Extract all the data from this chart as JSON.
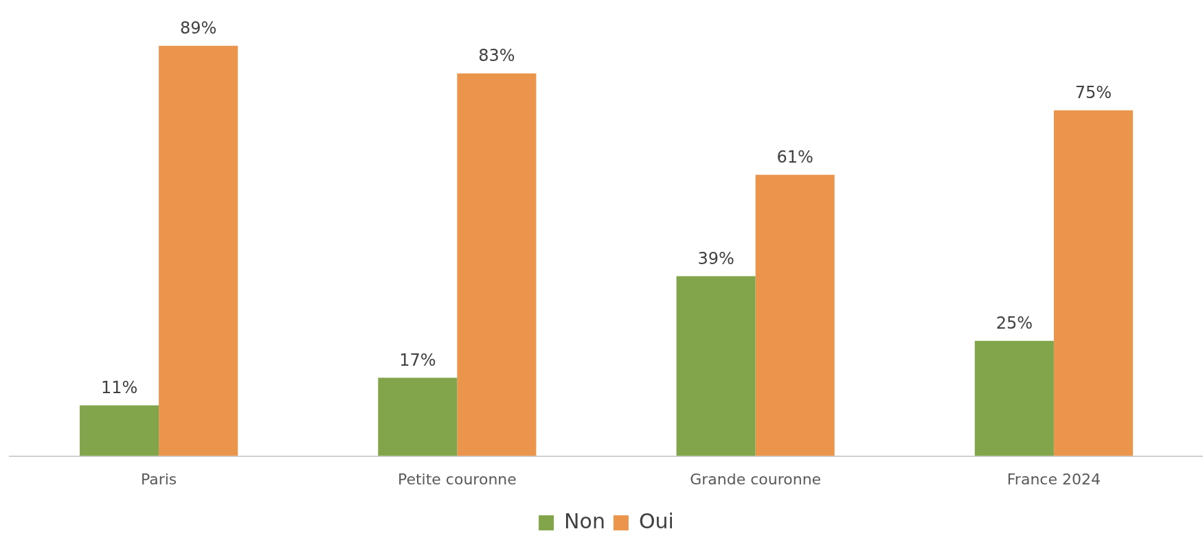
{
  "chart_data": {
    "type": "bar",
    "categories": [
      "Paris",
      "Petite couronne",
      "Grande couronne",
      "France 2024"
    ],
    "series": [
      {
        "name": "Non",
        "color": "#82a44a",
        "values": [
          11,
          17,
          39,
          25
        ],
        "value_labels": [
          "11%",
          "17%",
          "39%",
          "25%"
        ]
      },
      {
        "name": "Oui",
        "color": "#eb944b",
        "values": [
          89,
          83,
          61,
          75
        ],
        "value_labels": [
          "89%",
          "83%",
          "61%",
          "75%"
        ]
      }
    ],
    "legend": "bottom",
    "grid": false,
    "tick_labels": "x"
  }
}
